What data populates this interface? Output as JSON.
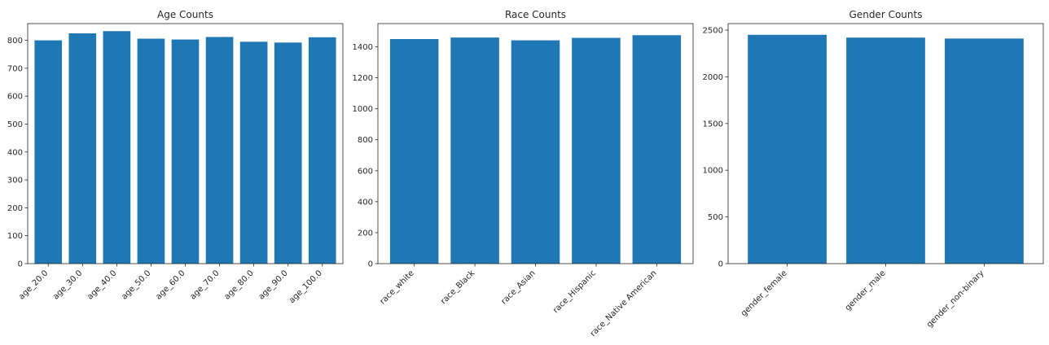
{
  "chart_data": [
    {
      "type": "bar",
      "title": "Age Counts",
      "xlabel": "",
      "ylabel": "",
      "categories": [
        "age_20.0",
        "age_30.0",
        "age_40.0",
        "age_50.0",
        "age_60.0",
        "age_70.0",
        "age_80.0",
        "age_90.0",
        "age_100.0"
      ],
      "values": [
        800,
        825,
        833,
        806,
        803,
        812,
        795,
        792,
        811
      ],
      "ylim": [
        0,
        860
      ],
      "yticks": [
        0,
        100,
        200,
        300,
        400,
        500,
        600,
        700,
        800
      ],
      "grid": false,
      "color": "#1f77b4"
    },
    {
      "type": "bar",
      "title": "Race Counts",
      "xlabel": "",
      "ylabel": "",
      "categories": [
        "race_white",
        "race_Black",
        "race_Asian",
        "race_Hispanic",
        "race_Native American"
      ],
      "values": [
        1450,
        1460,
        1442,
        1458,
        1475
      ],
      "ylim": [
        0,
        1550
      ],
      "yticks": [
        0,
        200,
        400,
        600,
        800,
        1000,
        1200,
        1400
      ],
      "grid": false,
      "color": "#1f77b4"
    },
    {
      "type": "bar",
      "title": "Gender Counts",
      "xlabel": "",
      "ylabel": "",
      "categories": [
        "gender_female",
        "gender_male",
        "gender_non-binary"
      ],
      "values": [
        2450,
        2420,
        2410
      ],
      "ylim": [
        0,
        2570
      ],
      "yticks": [
        0,
        500,
        1000,
        1500,
        2000,
        2500
      ],
      "grid": false,
      "color": "#1f77b4"
    }
  ]
}
